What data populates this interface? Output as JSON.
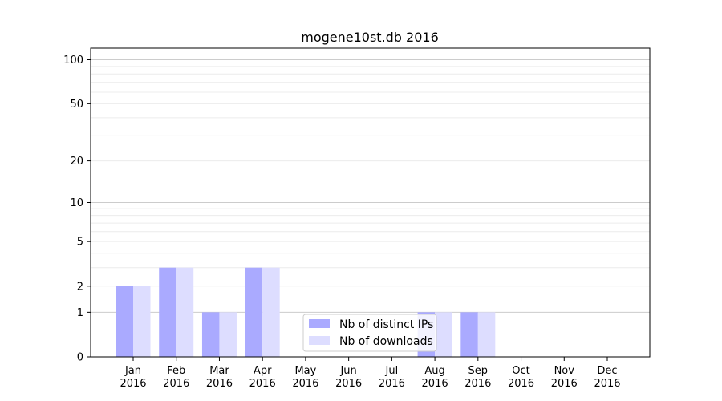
{
  "chart_data": {
    "type": "bar",
    "title": "mogene10st.db 2016",
    "categories": [
      "Jan\n2016",
      "Feb\n2016",
      "Mar\n2016",
      "Apr\n2016",
      "May\n2016",
      "Jun\n2016",
      "Jul\n2016",
      "Aug\n2016",
      "Sep\n2016",
      "Oct\n2016",
      "Nov\n2016",
      "Dec\n2016"
    ],
    "series": [
      {
        "name": "Nb of distinct IPs",
        "color": "#aaaaff",
        "values": [
          2,
          3,
          1,
          3,
          0,
          0,
          0,
          1,
          1,
          0,
          0,
          0
        ]
      },
      {
        "name": "Nb of downloads",
        "color": "#ddddff",
        "values": [
          2,
          3,
          1,
          3,
          0,
          0,
          0,
          1,
          1,
          0,
          0,
          0
        ]
      }
    ],
    "y_ticks": [
      0,
      1,
      2,
      5,
      10,
      20,
      50,
      100
    ],
    "y_scale": "log(1+y)",
    "ylim": [
      0,
      120
    ],
    "grid": true,
    "legend_placement": "lower-center"
  }
}
